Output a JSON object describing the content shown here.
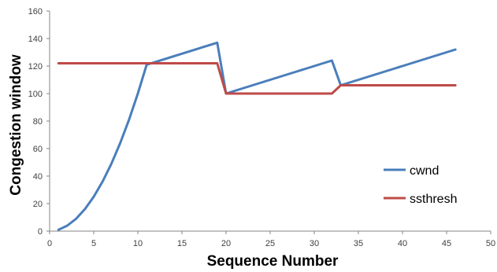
{
  "chart_data": {
    "type": "line",
    "title": "",
    "xlabel": "Sequence Number",
    "ylabel": "Congestion window",
    "xlim": [
      0,
      50
    ],
    "ylim": [
      0,
      160
    ],
    "xticks": [
      0,
      5,
      10,
      15,
      20,
      25,
      30,
      35,
      40,
      45,
      50
    ],
    "yticks": [
      0,
      20,
      40,
      60,
      80,
      100,
      120,
      140,
      160
    ],
    "grid": false,
    "legend": "right",
    "series": [
      {
        "name": "cwnd",
        "color": "#4a7ebb",
        "x": [
          1,
          2,
          3,
          4,
          5,
          6,
          7,
          8,
          9,
          10,
          11,
          12,
          13,
          14,
          15,
          16,
          17,
          18,
          19,
          20,
          21,
          22,
          23,
          24,
          25,
          26,
          27,
          28,
          29,
          30,
          31,
          32,
          33,
          34,
          35,
          36,
          37,
          38,
          39,
          40,
          41,
          42,
          43,
          44,
          45,
          46
        ],
        "y": [
          1,
          4,
          9,
          16,
          25,
          36,
          49,
          64,
          81,
          100,
          121,
          123,
          125,
          127,
          129,
          131,
          133,
          135,
          137,
          100,
          102,
          104,
          106,
          108,
          110,
          112,
          114,
          116,
          118,
          120,
          122,
          124,
          106,
          108,
          110,
          112,
          114,
          116,
          118,
          120,
          122,
          124,
          126,
          128,
          130,
          132
        ]
      },
      {
        "name": "ssthresh",
        "color": "#be4b48",
        "x": [
          1,
          19,
          20,
          32,
          33,
          46
        ],
        "y": [
          122,
          122,
          100,
          100,
          106,
          106
        ]
      }
    ]
  }
}
